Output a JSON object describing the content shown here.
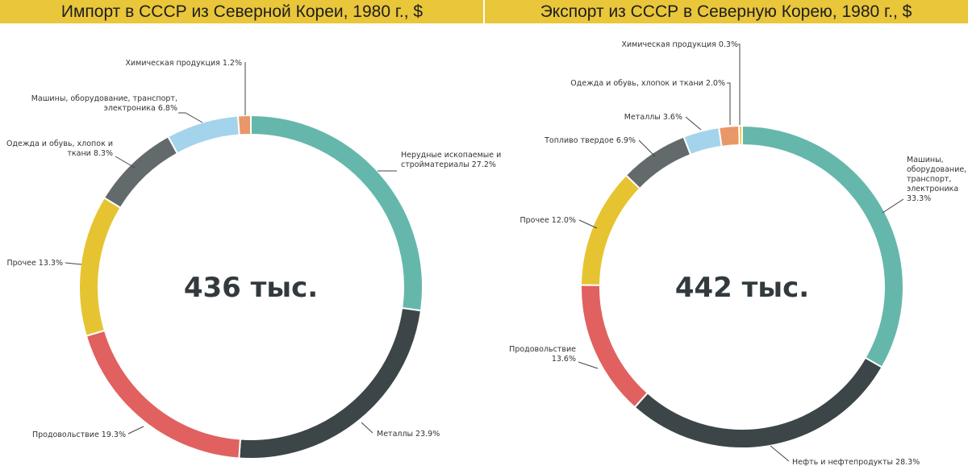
{
  "chart_data": [
    {
      "type": "pie",
      "title": "Импорт в СССР из Северной Кореи, 1980 г., $",
      "center_label": "436 тыс.",
      "slices": [
        {
          "label": "Нерудные ископаемые и стройматериалы 27.2%",
          "value": 27.2,
          "color": "#65b7ab"
        },
        {
          "label": "Металлы 23.9%",
          "value": 23.9,
          "color": "#3c4548"
        },
        {
          "label": "Продовольствие 19.3%",
          "value": 19.3,
          "color": "#e0615f"
        },
        {
          "label": "Прочее 13.3%",
          "value": 13.3,
          "color": "#e6c431"
        },
        {
          "label": "Одежда и обувь, хлопок и ткани 8.3%",
          "value": 8.3,
          "color": "#636a6b"
        },
        {
          "label": "Машины, оборудование, транспорт, электроника 6.8%",
          "value": 6.8,
          "color": "#a4d4ec"
        },
        {
          "label": "Химическая продукция 1.2%",
          "value": 1.2,
          "color": "#e89768"
        }
      ]
    },
    {
      "type": "pie",
      "title": "Экспорт из СССР в Северную Корею, 1980 г., $",
      "center_label": "442 тыс.",
      "slices": [
        {
          "label": "Машины, оборудование, транспорт, электроника 33.3%",
          "value": 33.3,
          "color": "#65b7ab"
        },
        {
          "label": "Нефть и нефтепродукты 28.3%",
          "value": 28.3,
          "color": "#3c4548"
        },
        {
          "label": "Продовольствие 13.6%",
          "value": 13.6,
          "color": "#e0615f"
        },
        {
          "label": "Прочее 12.0%",
          "value": 12.0,
          "color": "#e6c431"
        },
        {
          "label": "Топливо твердое 6.9%",
          "value": 6.9,
          "color": "#636a6b"
        },
        {
          "label": "Металлы 3.6%",
          "value": 3.6,
          "color": "#a4d4ec"
        },
        {
          "label": "Одежда и обувь, хлопок и ткани 2.0%",
          "value": 2.0,
          "color": "#e89768"
        },
        {
          "label": "Химическая продукция 0.3%",
          "value": 0.3,
          "color": "#e6c431"
        }
      ]
    }
  ]
}
